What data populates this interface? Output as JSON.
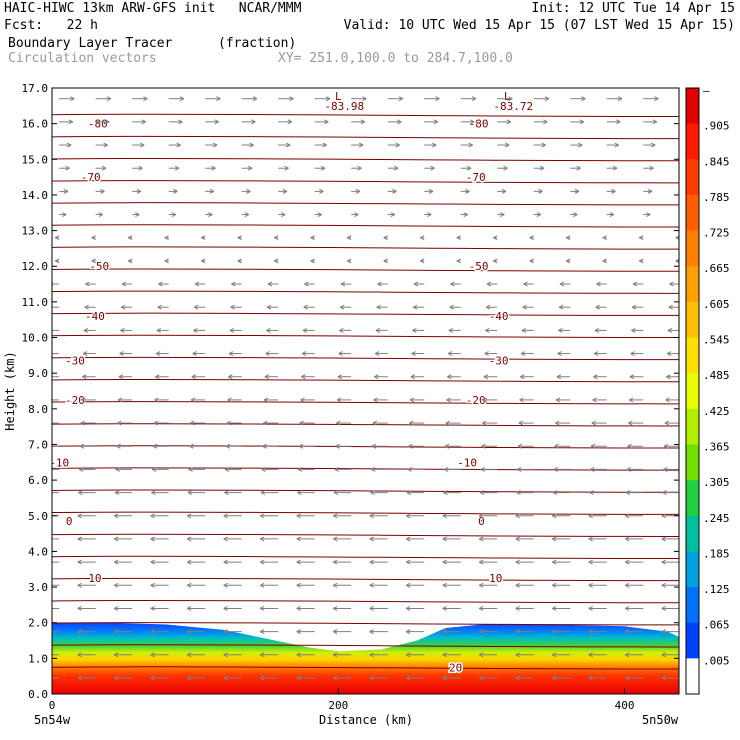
{
  "header": {
    "line1_left": "HAIC-HIWC 13km ARW-GFS init   NCAR/MMM",
    "line1_right": "Init: 12 UTC Tue 14 Apr 15",
    "line2_left": "Fcst:   22 h",
    "line2_right": "Valid: 10 UTC Wed 15 Apr 15 (07 LST Wed 15 Apr 15)",
    "line3_left": "Boundary Layer Tracer",
    "line3_mid": "(fraction)",
    "line4_left": "Circulation vectors",
    "line4_mid": "XY= 251.0,100.0 to 284.7,100.0"
  },
  "chart_data": {
    "type": "heatmap",
    "xlabel": "Distance (km)",
    "ylabel": "Height (km)",
    "xlim": [
      0,
      438
    ],
    "ylim": [
      0.0,
      17.0
    ],
    "x_ticks": [
      "0",
      "200",
      "400"
    ],
    "x_tick_values": [
      0,
      200,
      400
    ],
    "x_endpoint_labels": [
      "5n54w",
      "5n50w"
    ],
    "y_ticks": [
      "0.0",
      "1.0",
      "2.0",
      "3.0",
      "4.0",
      "5.0",
      "6.0",
      "7.0",
      "8.0",
      "9.0",
      "10.0",
      "11.0",
      "12.0",
      "13.0",
      "14.0",
      "15.0",
      "16.0",
      "17.0"
    ],
    "colorbar": {
      "labels": [
        "–",
        ".905",
        ".845",
        ".785",
        ".725",
        ".665",
        ".605",
        ".545",
        ".485",
        ".425",
        ".365",
        ".305",
        ".245",
        ".185",
        ".125",
        ".065",
        ".005"
      ],
      "colors": [
        "#e00000",
        "#ff1a00",
        "#ff3c00",
        "#ff5e00",
        "#ff8000",
        "#ffa000",
        "#ffc000",
        "#ffe000",
        "#e8ff00",
        "#b0f000",
        "#70e000",
        "#20d040",
        "#00c0a0",
        "#00a0e0",
        "#0070ff",
        "#0040ff",
        "#ffffff"
      ]
    },
    "tracer_top_km": [
      [
        0,
        2.0
      ],
      [
        40,
        2.0
      ],
      [
        80,
        1.95
      ],
      [
        120,
        1.8
      ],
      [
        150,
        1.55
      ],
      [
        180,
        1.3
      ],
      [
        200,
        1.2
      ],
      [
        230,
        1.25
      ],
      [
        255,
        1.5
      ],
      [
        275,
        1.85
      ],
      [
        300,
        1.95
      ],
      [
        350,
        1.95
      ],
      [
        400,
        1.9
      ],
      [
        430,
        1.75
      ],
      [
        438,
        1.6
      ]
    ],
    "temperature_contours_C": [
      {
        "value": "-80",
        "label_x_km": [
          32,
          298
        ]
      },
      {
        "value": "-70",
        "label_x_km": [
          27,
          296
        ]
      },
      {
        "value": "-50",
        "label_x_km": [
          33,
          298
        ]
      },
      {
        "value": "-40",
        "label_x_km": [
          30,
          312
        ]
      },
      {
        "value": "-30",
        "label_x_km": [
          16,
          312
        ]
      },
      {
        "value": "-20",
        "label_x_km": [
          16,
          296
        ]
      },
      {
        "value": "-10",
        "label_x_km": [
          5,
          290
        ]
      },
      {
        "value": "0",
        "label_x_km": [
          12,
          300
        ]
      },
      {
        "value": "10",
        "label_x_km": [
          30,
          310
        ]
      },
      {
        "value": "20",
        "label_x_km": [
          282
        ]
      }
    ],
    "min_labels": [
      {
        "marker": "L",
        "value": "-83.98",
        "x_km": 200
      },
      {
        "marker": "L",
        "value": "-83.72",
        "x_km": 318
      }
    ],
    "vectors": "circulation vectors (gray arrows): westward (leftward) below 12 km, eastward (rightward) above 13 km"
  }
}
